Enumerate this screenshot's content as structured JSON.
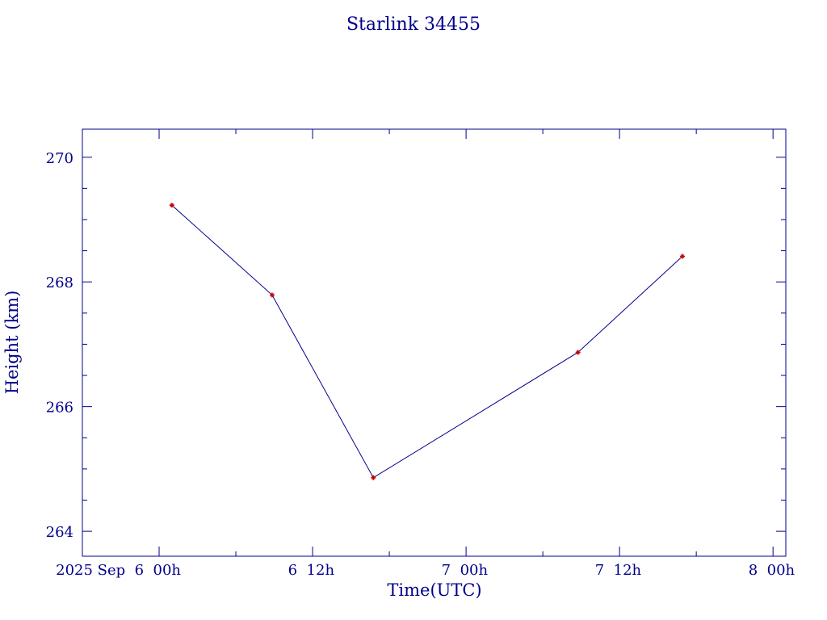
{
  "colors": {
    "axes": "#00008b",
    "text": "#00008b",
    "line": "#00008b",
    "marker": "#cc0000",
    "background": "#ffffff"
  },
  "chart_data": {
    "type": "line",
    "title": "Starlink 34455",
    "xlabel": "Time(UTC)",
    "ylabel": "Height (km)",
    "ylim": [
      263.6,
      270.45
    ],
    "xlim": [
      "2025-09-05 18:00",
      "2025-09-08 01:00"
    ],
    "grid": false,
    "x_ticks": [
      {
        "label": "2025 Sep  6  00h",
        "t": "2025-09-06 00:00"
      },
      {
        "label": "6  12h",
        "t": "2025-09-06 12:00"
      },
      {
        "label": "7  00h",
        "t": "2025-09-07 00:00"
      },
      {
        "label": "7  12h",
        "t": "2025-09-07 12:00"
      },
      {
        "label": "8  00h",
        "t": "2025-09-08 00:00"
      }
    ],
    "y_ticks": [
      264,
      266,
      268,
      270
    ],
    "series": [
      {
        "x": [
          "2025-09-06 01:00",
          "2025-09-06 08:50",
          "2025-09-06 16:45",
          "2025-09-07 08:45",
          "2025-09-07 16:55"
        ],
        "y": [
          269.23,
          267.79,
          264.86,
          266.87,
          268.41
        ]
      }
    ]
  }
}
